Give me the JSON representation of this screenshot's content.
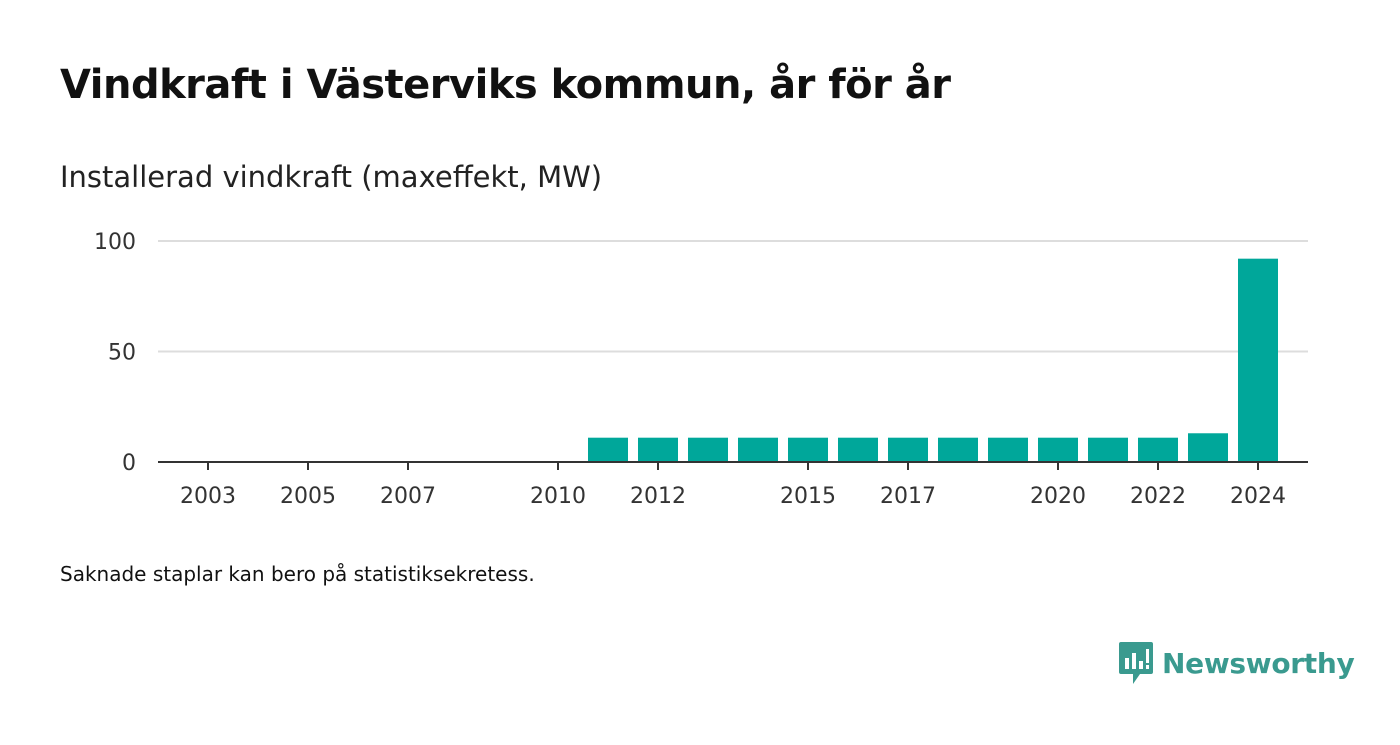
{
  "title": "Vindkraft i Västerviks kommun, år för år",
  "footnote": "Saknade staplar kan bero på statistiksekretess.",
  "brand": {
    "name": "Newsworthy",
    "color": "#3a9a8f"
  },
  "chart_data": {
    "type": "bar",
    "title": "Vindkraft i Västerviks kommun, år för år",
    "ylabel": "Installerad vindkraft (maxeffekt, MW)",
    "xlabel": "",
    "x_range": [
      2002,
      2025
    ],
    "ylim": [
      0,
      100
    ],
    "yticks": [
      0,
      50,
      100
    ],
    "xticks": [
      2003,
      2005,
      2007,
      2010,
      2012,
      2015,
      2017,
      2020,
      2022,
      2024
    ],
    "grid": true,
    "bar_color": "#00a79a",
    "categories": [
      2011,
      2012,
      2013,
      2014,
      2015,
      2016,
      2017,
      2018,
      2019,
      2020,
      2021,
      2022,
      2023,
      2024
    ],
    "values": [
      11,
      11,
      11,
      11,
      11,
      11,
      11,
      11,
      11,
      11,
      11,
      11,
      13,
      92
    ]
  }
}
